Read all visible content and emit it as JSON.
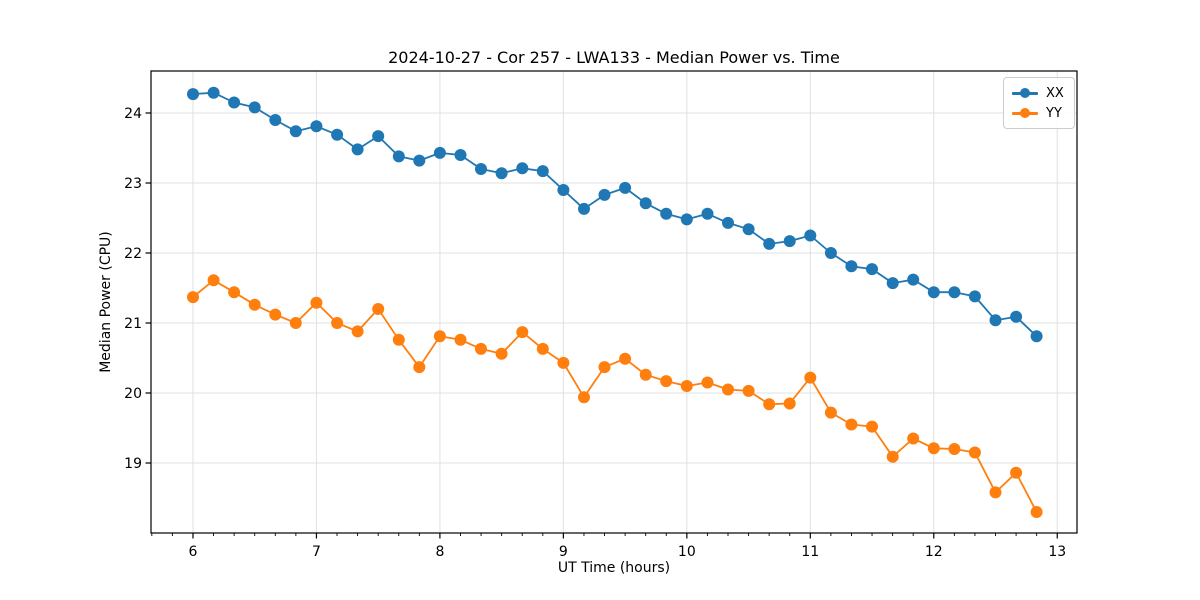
{
  "figure": {
    "background": "#ffffff"
  },
  "chart_data": {
    "type": "line",
    "title": "2024-10-27 - Cor 257 - LWA133 - Median Power vs. Time",
    "xlabel": "UT Time (hours)",
    "ylabel": "Median Power (CPU)",
    "xlim": [
      5.66,
      13.16
    ],
    "ylim": [
      18.0,
      24.6
    ],
    "x_ticks": [
      6,
      7,
      8,
      9,
      10,
      11,
      12,
      13
    ],
    "y_ticks": [
      19,
      20,
      21,
      22,
      23,
      24
    ],
    "x_minor_subdivisions": 6,
    "grid": true,
    "grid_color": "#e0e0e0",
    "axis_color": "#000000",
    "legend_position": "upper right",
    "x": [
      6.0,
      6.167,
      6.333,
      6.5,
      6.667,
      6.833,
      7.0,
      7.167,
      7.333,
      7.5,
      7.667,
      7.833,
      8.0,
      8.167,
      8.333,
      8.5,
      8.667,
      8.833,
      9.0,
      9.167,
      9.333,
      9.5,
      9.667,
      9.833,
      10.0,
      10.167,
      10.333,
      10.5,
      10.667,
      10.833,
      11.0,
      11.167,
      11.333,
      11.5,
      11.667,
      11.833,
      12.0,
      12.167,
      12.333,
      12.5,
      12.667,
      12.833
    ],
    "series": [
      {
        "name": "XX",
        "color": "#1f77b4",
        "values": [
          24.27,
          24.29,
          24.15,
          24.08,
          23.9,
          23.74,
          23.81,
          23.69,
          23.48,
          23.67,
          23.38,
          23.32,
          23.43,
          23.4,
          23.2,
          23.14,
          23.21,
          23.17,
          22.9,
          22.63,
          22.83,
          22.93,
          22.71,
          22.56,
          22.48,
          22.56,
          22.43,
          22.34,
          22.13,
          22.17,
          22.25,
          22.0,
          21.81,
          21.77,
          21.57,
          21.62,
          21.44,
          21.44,
          21.38,
          21.04,
          21.09,
          20.81
        ]
      },
      {
        "name": "YY",
        "color": "#ff7f0e",
        "values": [
          21.37,
          21.61,
          21.44,
          21.26,
          21.12,
          21.0,
          21.29,
          21.0,
          20.88,
          21.2,
          20.76,
          20.37,
          20.81,
          20.76,
          20.63,
          20.56,
          20.87,
          20.63,
          20.43,
          19.94,
          20.37,
          20.49,
          20.26,
          20.17,
          20.1,
          20.15,
          20.05,
          20.03,
          19.84,
          19.85,
          20.22,
          19.72,
          19.55,
          19.52,
          19.09,
          19.35,
          19.21,
          19.2,
          19.15,
          18.58,
          18.86,
          18.3
        ]
      }
    ]
  }
}
